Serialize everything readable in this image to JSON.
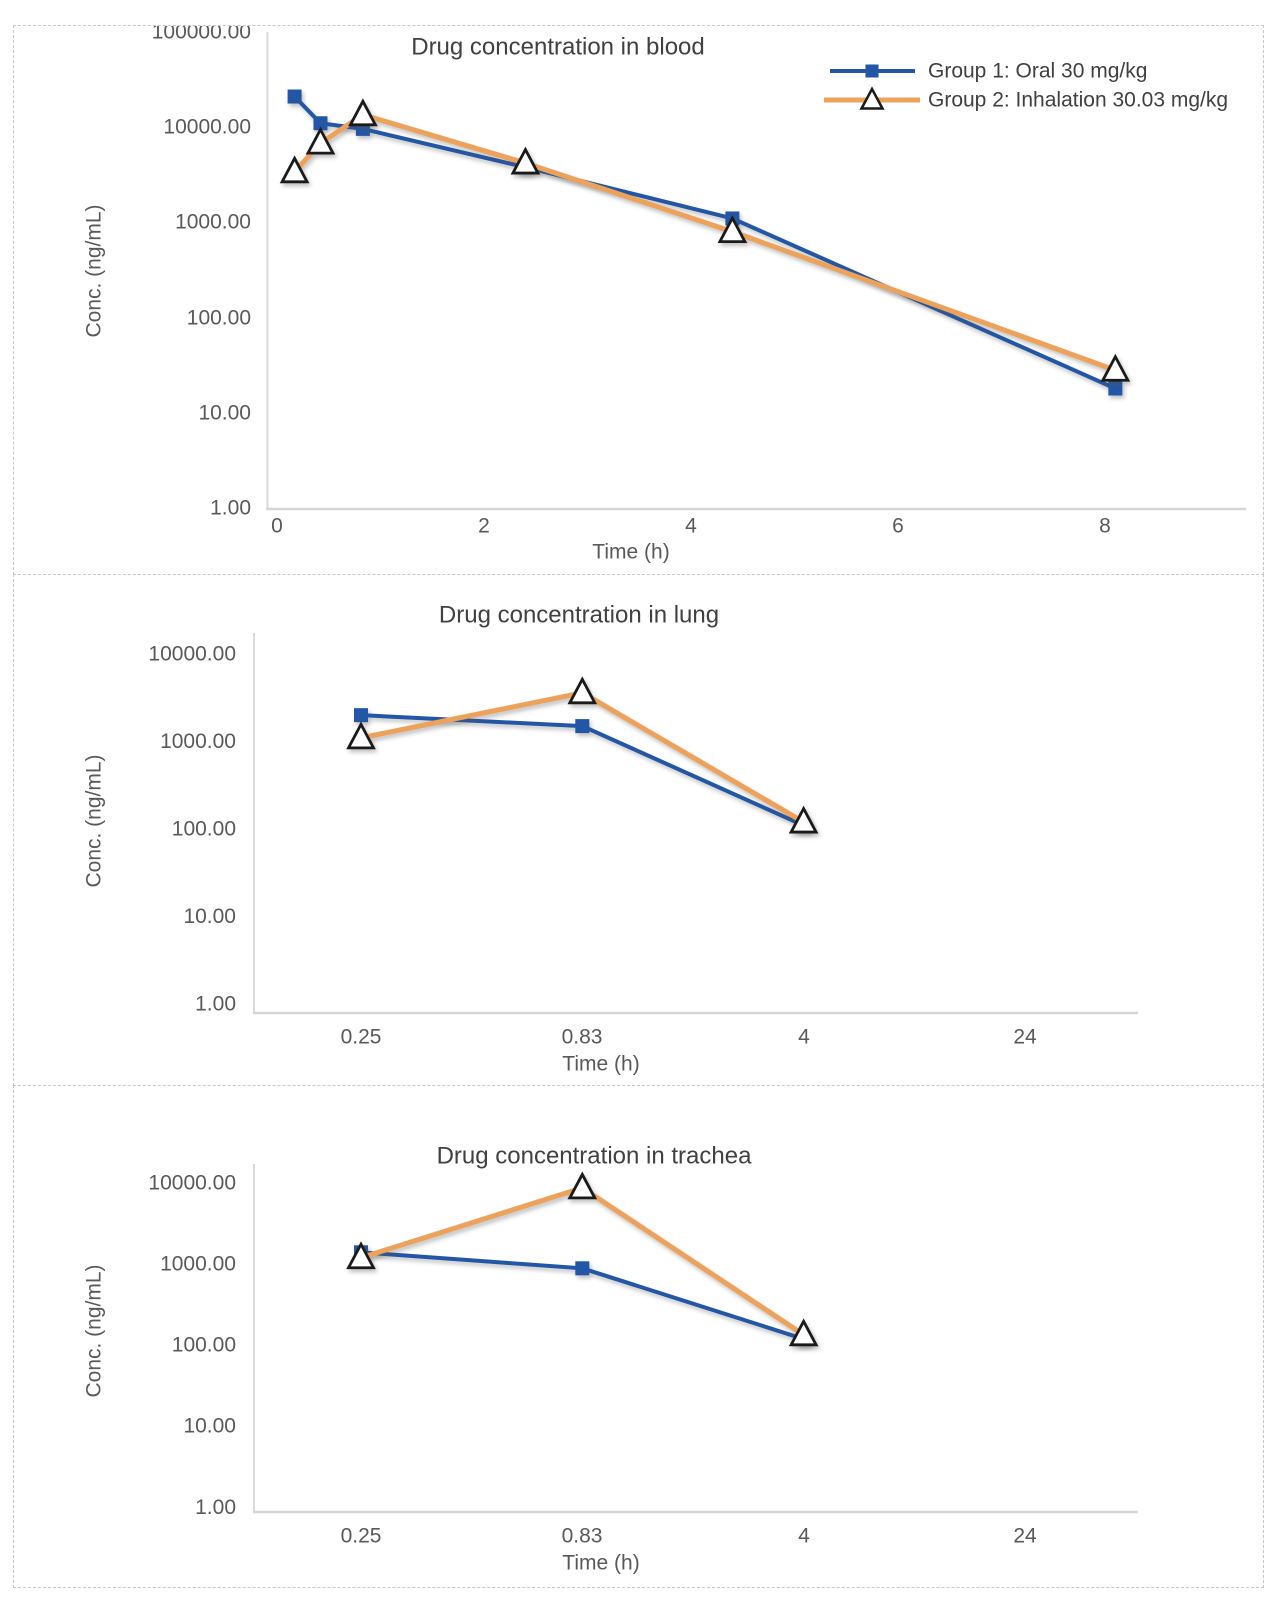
{
  "colors": {
    "group1_blue": "#2356A4",
    "group2_orange": "#EDA25C",
    "marker_outline": "#1a1a1a",
    "axis_line": "#d9d9d9",
    "tick_text": "#595959",
    "title_text": "#404040"
  },
  "legend": {
    "items": [
      {
        "label": "Group 1: Oral 30 mg/kg",
        "group": "group1",
        "marker": "square"
      },
      {
        "label": "Group 2: Inhalation 30.03 mg/kg",
        "group": "group2",
        "marker": "triangle"
      }
    ]
  },
  "chart_data": [
    {
      "id": "blood",
      "type": "line",
      "title": "Drug concentration in blood",
      "xlabel": "Time (h)",
      "ylabel": "Conc. (ng/mL)",
      "x_scale": "linear",
      "y_scale": "log",
      "xlim": [
        0,
        8.35
      ],
      "ylim": [
        1,
        100000
      ],
      "x_ticks": [
        0,
        2,
        4,
        6,
        8
      ],
      "y_tick_labels": [
        "100000.00",
        "10000.00",
        "1000.00",
        "100.00",
        "10.00",
        "1.00"
      ],
      "grid": false,
      "legend_position": "top-right",
      "legend_visible": true,
      "series": [
        {
          "name": "Group 1: Oral 30 mg/kg",
          "group": "group1",
          "marker": "square",
          "x": [
            0.17,
            0.42,
            0.83,
            2.4,
            4.4,
            8.1
          ],
          "y": [
            21000,
            11000,
            9600,
            3800,
            1100,
            18
          ]
        },
        {
          "name": "Group 2: Inhalation 30.03 mg/kg",
          "group": "group2",
          "marker": "triangle",
          "x": [
            0.17,
            0.42,
            0.83,
            2.4,
            4.4,
            8.1
          ],
          "y": [
            3400,
            6800,
            13500,
            4200,
            800,
            28
          ]
        }
      ]
    },
    {
      "id": "lung",
      "type": "line",
      "title": "Drug concentration in lung",
      "xlabel": "Time (h)",
      "ylabel": "Conc. (ng/mL)",
      "x_scale": "category",
      "y_scale": "log",
      "ylim": [
        1,
        10000
      ],
      "categories": [
        "0.25",
        "0.83",
        "4",
        "24"
      ],
      "y_tick_labels": [
        "10000.00",
        "1000.00",
        "100.00",
        "10.00",
        "1.00"
      ],
      "grid": false,
      "legend_visible": false,
      "series": [
        {
          "name": "Group 1: Oral 30 mg/kg",
          "group": "group1",
          "marker": "square",
          "values": [
            2000,
            1500,
            110,
            null
          ]
        },
        {
          "name": "Group 2: Inhalation 30.03 mg/kg",
          "group": "group2",
          "marker": "triangle",
          "values": [
            1100,
            3600,
            120,
            null
          ]
        }
      ]
    },
    {
      "id": "trachea",
      "type": "line",
      "title": "Drug concentration in trachea",
      "xlabel": "Time (h)",
      "ylabel": "Conc. (ng/mL)",
      "x_scale": "category",
      "y_scale": "log",
      "ylim": [
        1,
        10000
      ],
      "categories": [
        "0.25",
        "0.83",
        "4",
        "24"
      ],
      "y_tick_labels": [
        "10000.00",
        "1000.00",
        "100.00",
        "10.00",
        "1.00"
      ],
      "grid": false,
      "legend_visible": false,
      "series": [
        {
          "name": "Group 1: Oral 30 mg/kg",
          "group": "group1",
          "marker": "square",
          "values": [
            1400,
            890,
            120,
            null
          ]
        },
        {
          "name": "Group 2: Inhalation 30.03 mg/kg",
          "group": "group2",
          "marker": "triangle",
          "values": [
            1200,
            8700,
            135,
            null
          ]
        }
      ]
    }
  ]
}
